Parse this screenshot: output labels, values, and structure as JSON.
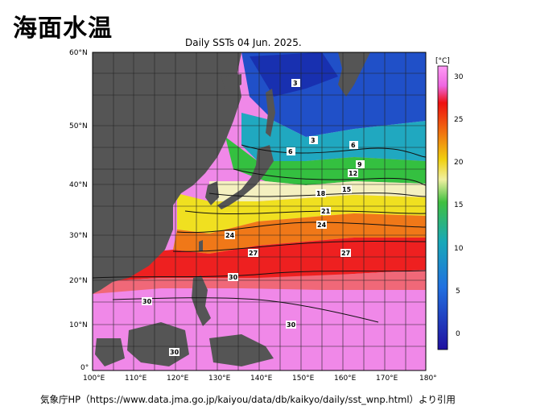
{
  "title": "海面水温",
  "map_title": "Daily SSTs 04 Jun. 2025.",
  "source": "気象庁HP（https://www.data.jma.go.jp/kaiyou/data/db/kaikyo/daily/sst_wnp.html）より引用",
  "colorbar": {
    "unit": "[°C]",
    "ticks": [
      "30",
      "25",
      "20",
      "15",
      "10",
      "5",
      "0"
    ]
  },
  "axes": {
    "lat_ticks": [
      "60°N",
      "50°N",
      "40°N",
      "30°N",
      "20°N",
      "10°N",
      "0°"
    ],
    "lon_ticks": [
      "100°E",
      "110°E",
      "120°E",
      "130°E",
      "140°E",
      "150°E",
      "160°E",
      "170°E",
      "180°"
    ]
  },
  "contour_labels": [
    "3",
    "3",
    "6",
    "6",
    "9",
    "12",
    "15",
    "18",
    "21",
    "24",
    "24",
    "27",
    "27",
    "30",
    "30",
    "30",
    "30"
  ],
  "colors": {
    "land": "#555555",
    "warm": "#ee88e8",
    "hot": "#ee2020",
    "orange": "#f07818",
    "yellow": "#f0e020",
    "cream": "#f4f0c8",
    "green": "#3cc43c",
    "teal": "#20a8b0",
    "blue": "#2060d0",
    "deep": "#1830b0"
  }
}
